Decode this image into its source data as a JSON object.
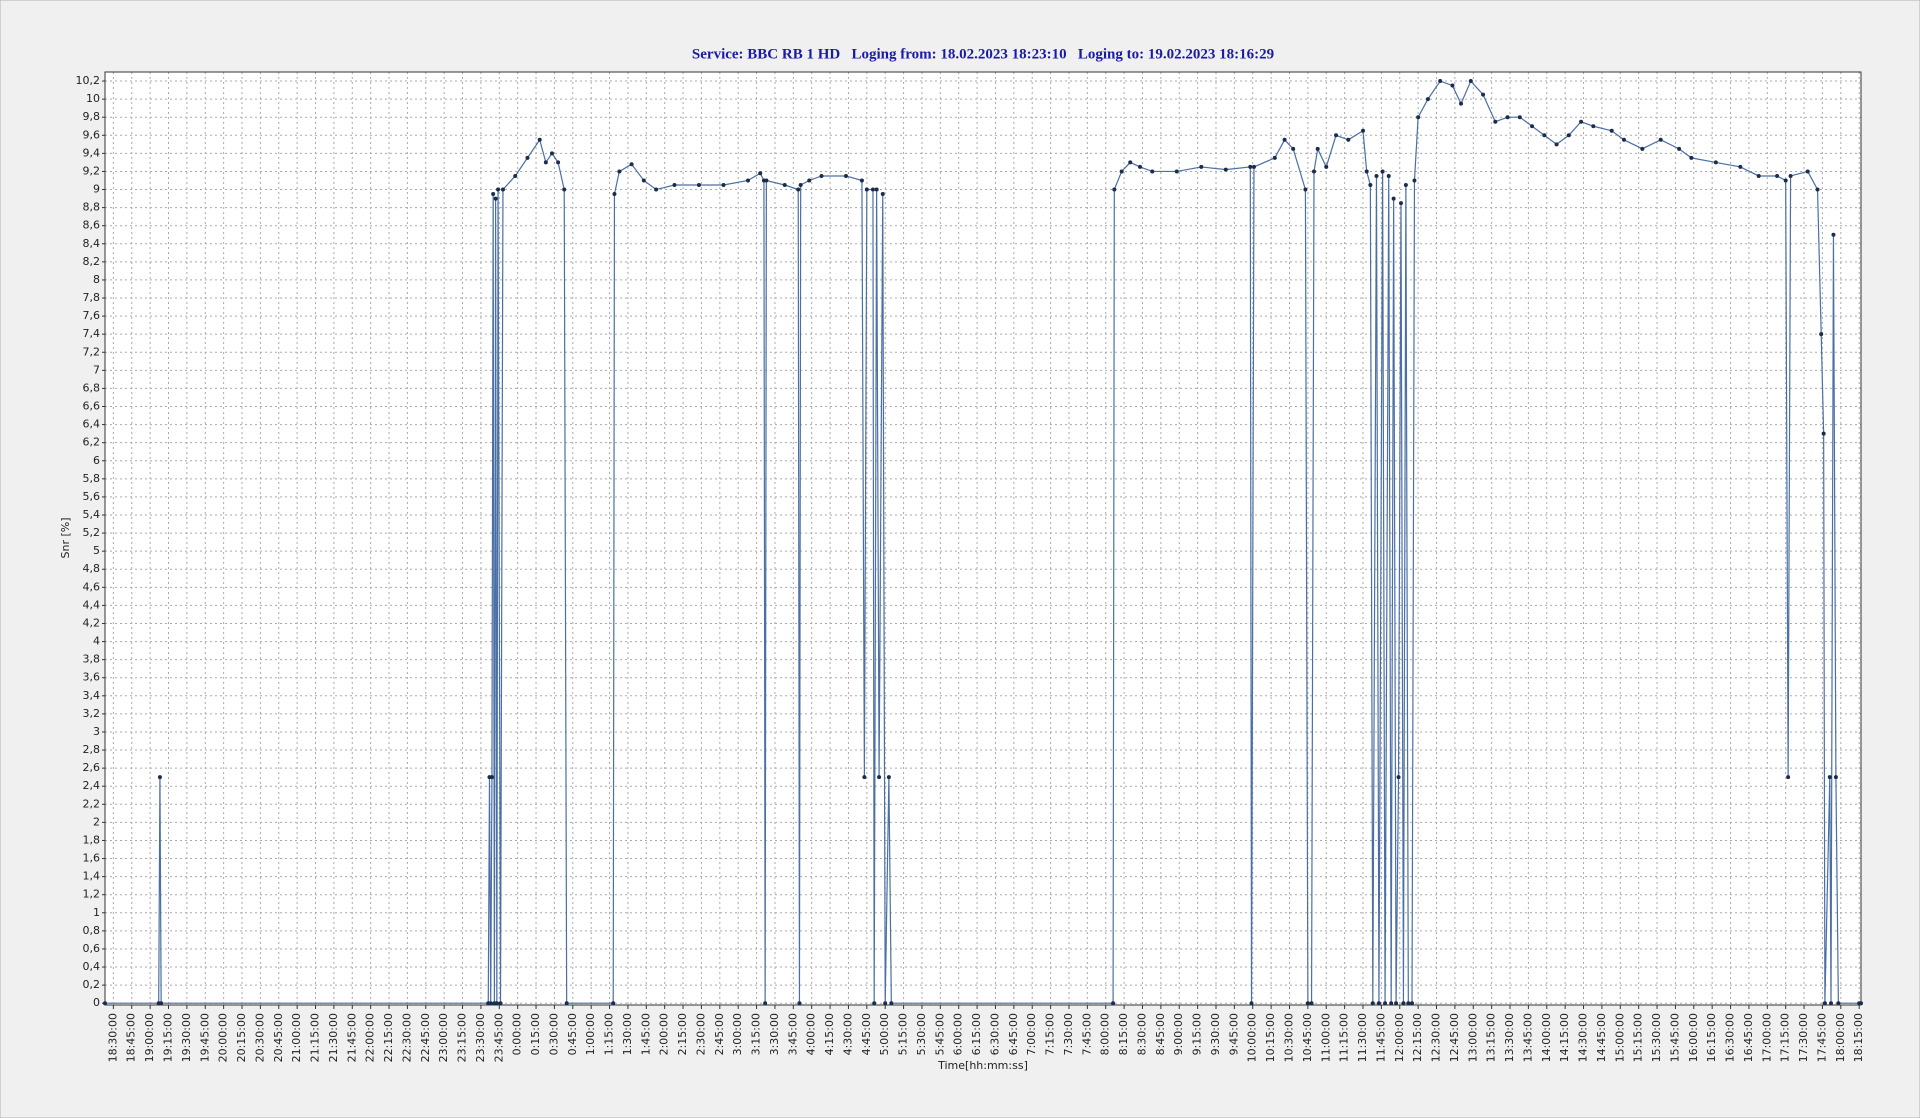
{
  "chart_data": {
    "type": "line",
    "title": "Service: BBC RB 1 HD   Loging from: 18.02.2023 18:23:10   Loging to: 19.02.2023 18:16:29",
    "xlabel": "Time[hh:mm:ss]",
    "ylabel": "Snr [%]",
    "grid": true,
    "xlim": [
      "18:23:10",
      "18:16:29"
    ],
    "ylim": [
      -0.02,
      10.3
    ],
    "xticks": [
      "18:30:00",
      "18:45:00",
      "19:00:00",
      "19:15:00",
      "19:30:00",
      "19:45:00",
      "20:00:00",
      "20:15:00",
      "20:30:00",
      "20:45:00",
      "21:00:00",
      "21:15:00",
      "21:30:00",
      "21:45:00",
      "22:00:00",
      "22:15:00",
      "22:30:00",
      "22:45:00",
      "23:00:00",
      "23:15:00",
      "23:30:00",
      "23:45:00",
      "0:00:00",
      "0:15:00",
      "0:30:00",
      "0:45:00",
      "1:00:00",
      "1:15:00",
      "1:30:00",
      "1:45:00",
      "2:00:00",
      "2:15:00",
      "2:30:00",
      "2:45:00",
      "3:00:00",
      "3:15:00",
      "3:30:00",
      "3:45:00",
      "4:00:00",
      "4:15:00",
      "4:30:00",
      "4:45:00",
      "5:00:00",
      "5:15:00",
      "5:30:00",
      "5:45:00",
      "6:00:00",
      "6:15:00",
      "6:30:00",
      "6:45:00",
      "7:00:00",
      "7:15:00",
      "7:30:00",
      "7:45:00",
      "8:00:00",
      "8:15:00",
      "8:30:00",
      "8:45:00",
      "9:00:00",
      "9:15:00",
      "9:30:00",
      "9:45:00",
      "10:00:00",
      "10:15:00",
      "10:30:00",
      "10:45:00",
      "11:00:00",
      "11:15:00",
      "11:30:00",
      "11:45:00",
      "12:00:00",
      "12:15:00",
      "12:30:00",
      "12:45:00",
      "13:00:00",
      "13:15:00",
      "13:30:00",
      "13:45:00",
      "14:00:00",
      "14:15:00",
      "14:30:00",
      "14:45:00",
      "15:00:00",
      "15:15:00",
      "15:30:00",
      "15:45:00",
      "16:00:00",
      "16:15:00",
      "16:30:00",
      "16:45:00",
      "17:00:00",
      "17:15:00",
      "17:30:00",
      "17:45:00",
      "18:00:00",
      "18:15:00"
    ],
    "yticks": [
      0,
      {
        "value": 0.2,
        "label": "0,2"
      },
      {
        "value": 0.4,
        "label": "0,4"
      },
      {
        "value": 0.6,
        "label": "0,6"
      },
      {
        "value": 0.8,
        "label": "0,8"
      },
      1,
      {
        "value": 1.2,
        "label": "1,2"
      },
      {
        "value": 1.4,
        "label": "1,4"
      },
      {
        "value": 1.6,
        "label": "1,6"
      },
      {
        "value": 1.8,
        "label": "1,8"
      },
      2,
      {
        "value": 2.2,
        "label": "2,2"
      },
      {
        "value": 2.4,
        "label": "2,4"
      },
      {
        "value": 2.6,
        "label": "2,6"
      },
      {
        "value": 2.8,
        "label": "2,8"
      },
      3,
      {
        "value": 3.2,
        "label": "3,2"
      },
      {
        "value": 3.4,
        "label": "3,4"
      },
      {
        "value": 3.6,
        "label": "3,6"
      },
      {
        "value": 3.8,
        "label": "3,8"
      },
      4,
      {
        "value": 4.2,
        "label": "4,2"
      },
      {
        "value": 4.4,
        "label": "4,4"
      },
      {
        "value": 4.6,
        "label": "4,6"
      },
      {
        "value": 4.8,
        "label": "4,8"
      },
      5,
      {
        "value": 5.2,
        "label": "5,2"
      },
      {
        "value": 5.4,
        "label": "5,4"
      },
      {
        "value": 5.6,
        "label": "5,6"
      },
      {
        "value": 5.8,
        "label": "5,8"
      },
      6,
      {
        "value": 6.2,
        "label": "6,2"
      },
      {
        "value": 6.4,
        "label": "6,4"
      },
      {
        "value": 6.6,
        "label": "6,6"
      },
      {
        "value": 6.8,
        "label": "6,8"
      },
      7,
      {
        "value": 7.2,
        "label": "7,2"
      },
      {
        "value": 7.4,
        "label": "7,4"
      },
      {
        "value": 7.6,
        "label": "7,6"
      },
      {
        "value": 7.8,
        "label": "7,8"
      },
      8,
      {
        "value": 8.2,
        "label": "8,2"
      },
      {
        "value": 8.4,
        "label": "8,4"
      },
      {
        "value": 8.6,
        "label": "8,6"
      },
      {
        "value": 8.8,
        "label": "8,8"
      },
      9,
      {
        "value": 9.2,
        "label": "9,2"
      },
      {
        "value": 9.4,
        "label": "9,4"
      },
      {
        "value": 9.6,
        "label": "9,6"
      },
      {
        "value": 9.8,
        "label": "9,8"
      },
      10,
      {
        "value": 10.2,
        "label": "10,2"
      }
    ],
    "series": [
      {
        "name": "Snr",
        "color": "#4a6fa5",
        "x": [
          "18:23:10",
          "19:07:00",
          "19:08:00",
          "19:09:00",
          "23:36:00",
          "23:37:00",
          "23:38:00",
          "23:39:00",
          "23:40:00",
          "23:41:00",
          "23:42:00",
          "23:43:00",
          "23:44:00",
          "23:46:00",
          "23:48:00",
          "23:58:00",
          "0:08:00",
          "0:18:00",
          "0:23:00",
          "0:28:00",
          "0:33:00",
          "0:38:00",
          "0:40:00",
          "1:18:00",
          "1:19:00",
          "1:23:00",
          "1:33:00",
          "1:43:00",
          "1:53:00",
          "2:08:00",
          "2:28:00",
          "2:48:00",
          "3:08:00",
          "3:18:00",
          "3:21:00",
          "3:22:00",
          "3:23:00",
          "3:38:00",
          "3:49:00",
          "3:50:00",
          "3:51:00",
          "3:58:00",
          "4:08:00",
          "4:28:00",
          "4:41:00",
          "4:43:00",
          "4:45:00",
          "4:50:00",
          "4:51:00",
          "4:53:00",
          "4:55:00",
          "4:58:00",
          "5:00:00",
          "5:03:00",
          "5:05:00",
          "8:06:00",
          "8:07:00",
          "8:13:00",
          "8:20:00",
          "8:28:00",
          "8:38:00",
          "8:58:00",
          "9:18:00",
          "9:38:00",
          "9:58:00",
          "9:59:00",
          "10:01:00",
          "10:18:00",
          "10:26:00",
          "10:33:00",
          "10:43:00",
          "10:45:00",
          "10:48:00",
          "10:50:00",
          "10:53:00",
          "11:00:00",
          "11:08:00",
          "11:18:00",
          "11:30:00",
          "11:33:00",
          "11:36:00",
          "11:38:00",
          "11:41:00",
          "11:43:00",
          "11:46:00",
          "11:48:00",
          "11:51:00",
          "11:53:00",
          "11:55:00",
          "11:57:00",
          "11:59:00",
          "12:01:00",
          "12:03:00",
          "12:05:00",
          "12:07:00",
          "12:10:00",
          "12:12:00",
          "12:15:00",
          "12:23:00",
          "12:33:00",
          "12:43:00",
          "12:50:00",
          "12:58:00",
          "13:08:00",
          "13:18:00",
          "13:28:00",
          "13:38:00",
          "13:48:00",
          "13:58:00",
          "14:08:00",
          "14:18:00",
          "14:28:00",
          "14:38:00",
          "14:53:00",
          "15:03:00",
          "15:18:00",
          "15:33:00",
          "15:48:00",
          "15:58:00",
          "16:18:00",
          "16:38:00",
          "16:53:00",
          "17:08:00",
          "17:15:00",
          "17:17:00",
          "17:19:00",
          "17:33:00",
          "17:41:00",
          "17:44:00",
          "17:46:00",
          "17:47:00",
          "17:51:00",
          "17:52:00",
          "17:54:00",
          "17:56:00",
          "17:58:00",
          "18:15:00",
          "18:16:29"
        ],
        "values": [
          0,
          0,
          2.5,
          0,
          0,
          2.5,
          0,
          2.5,
          8.95,
          0,
          8.9,
          0,
          9.0,
          0,
          9.0,
          9.15,
          9.35,
          9.55,
          9.3,
          9.4,
          9.3,
          9.0,
          0,
          0,
          8.95,
          9.2,
          9.28,
          9.1,
          9.0,
          9.05,
          9.05,
          9.05,
          9.1,
          9.18,
          9.1,
          0,
          9.1,
          9.05,
          9.0,
          0,
          9.05,
          9.1,
          9.15,
          9.15,
          9.1,
          2.5,
          9.0,
          9.0,
          0,
          9.0,
          2.5,
          8.95,
          0,
          2.5,
          0,
          0,
          9.0,
          9.2,
          9.3,
          9.25,
          9.2,
          9.2,
          9.25,
          9.22,
          9.25,
          0,
          9.25,
          9.35,
          9.55,
          9.45,
          9.0,
          0,
          0,
          9.2,
          9.45,
          9.25,
          9.6,
          9.55,
          9.65,
          9.2,
          9.05,
          0,
          9.15,
          0,
          9.2,
          0,
          9.15,
          0,
          8.9,
          0,
          2.5,
          8.85,
          0,
          9.05,
          0,
          0,
          9.1,
          9.8,
          10.0,
          10.2,
          10.15,
          9.95,
          10.2,
          10.05,
          9.75,
          9.8,
          9.8,
          9.7,
          9.6,
          9.5,
          9.6,
          9.75,
          9.7,
          9.65,
          9.55,
          9.45,
          9.55,
          9.45,
          9.35,
          9.3,
          9.25,
          9.15,
          9.15,
          9.1,
          2.5,
          9.15,
          9.2,
          9.0,
          7.4,
          6.3,
          0,
          2.5,
          0,
          8.5,
          2.5,
          0,
          0,
          0
        ]
      }
    ]
  }
}
